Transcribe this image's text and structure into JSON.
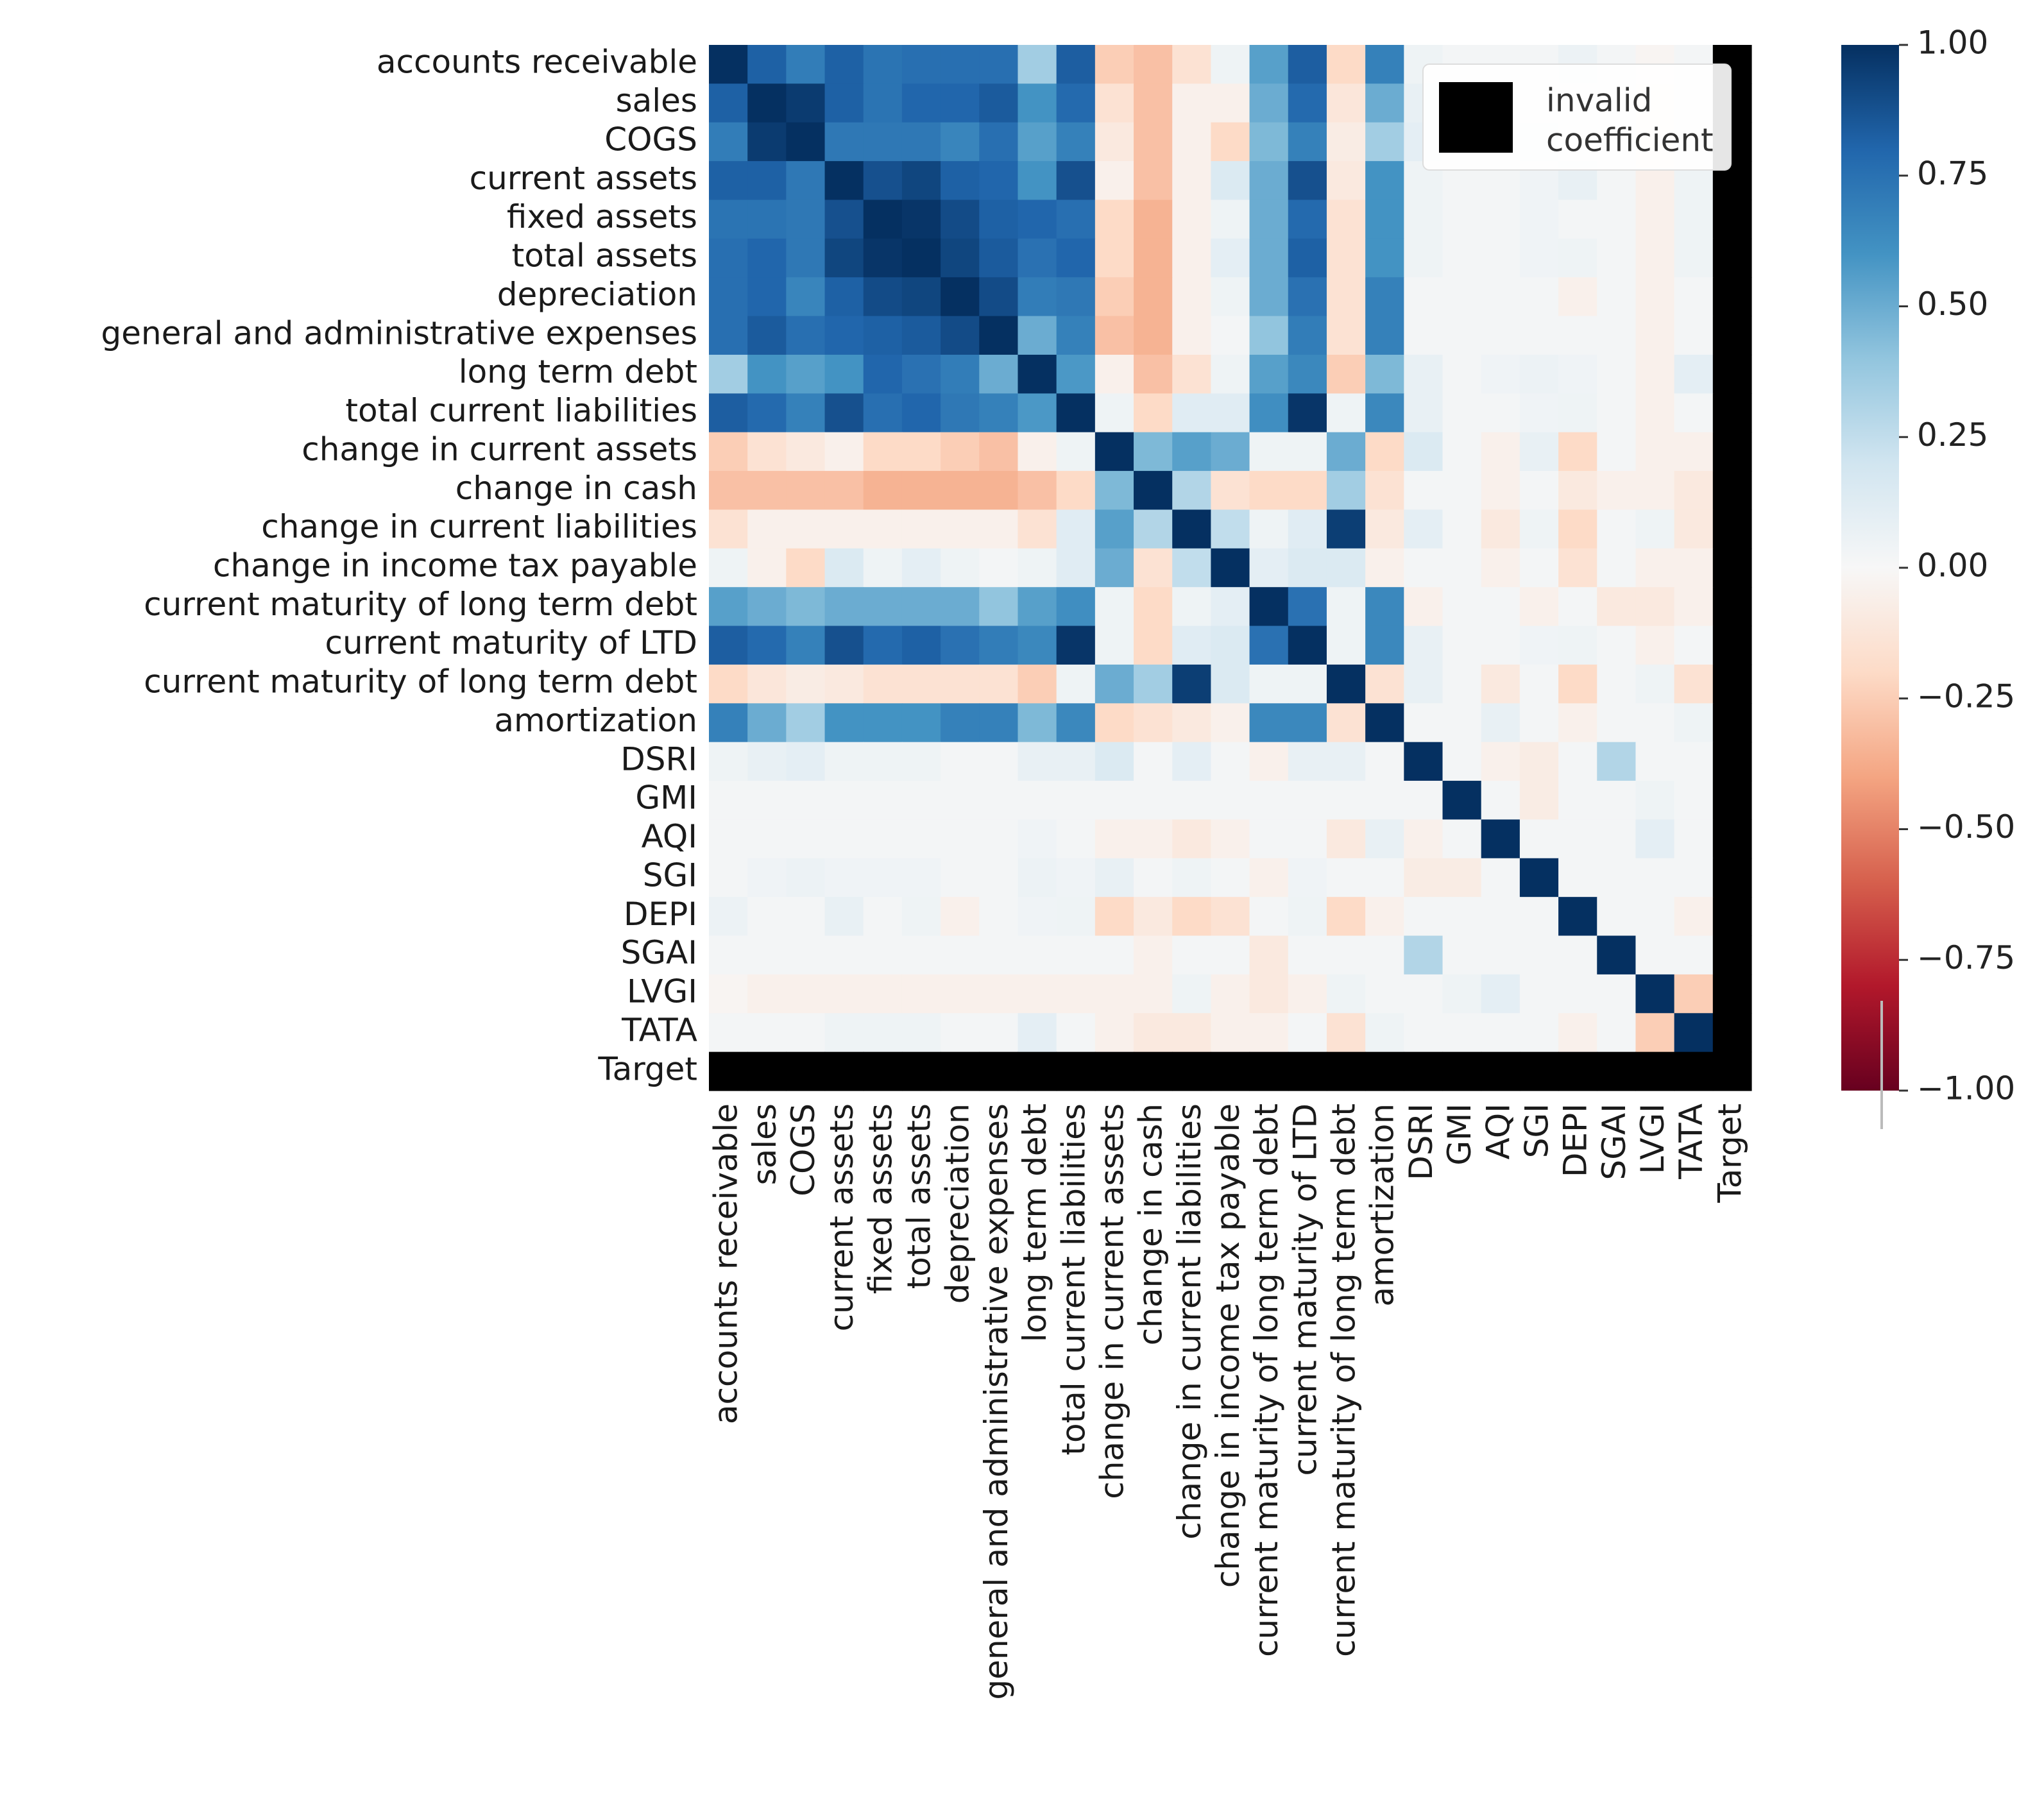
{
  "chart_data": {
    "type": "heatmap",
    "title": "",
    "labels": [
      "accounts receivable",
      "sales",
      "COGS",
      "current assets",
      "fixed assets",
      "total assets",
      "depreciation",
      "general and administrative expenses",
      "long term debt",
      "total current liabilities",
      "change in current assets",
      "change in cash",
      "change in current liabilities",
      "change in income tax payable",
      "current maturity of long term debt",
      "current maturity of LTD",
      "current maturity of long term debt",
      "amortization",
      "DSRI",
      "GMI",
      "AQI",
      "SGI",
      "DEPI",
      "SGAI",
      "LVGI",
      "TATA",
      "Target"
    ],
    "matrix": [
      [
        1,
        0.82,
        0.7,
        0.82,
        0.74,
        0.76,
        0.76,
        0.76,
        0.35,
        0.83,
        -0.25,
        -0.3,
        -0.15,
        0.05,
        0.55,
        0.83,
        -0.2,
        0.68,
        0.05,
        0.02,
        0.02,
        0.02,
        0.06,
        0.02,
        -0.02,
        0.02,
        null
      ],
      [
        0.82,
        1,
        0.96,
        0.82,
        0.74,
        0.8,
        0.8,
        0.84,
        0.6,
        0.78,
        -0.15,
        -0.3,
        -0.05,
        -0.05,
        0.5,
        0.78,
        -0.12,
        0.5,
        0.08,
        0.02,
        0.02,
        0.04,
        0.02,
        0.02,
        -0.05,
        0.02,
        null
      ],
      [
        0.7,
        0.96,
        1,
        0.72,
        0.72,
        0.72,
        0.66,
        0.76,
        0.55,
        0.68,
        -0.1,
        -0.3,
        -0.05,
        -0.2,
        0.45,
        0.68,
        -0.08,
        0.35,
        0.1,
        0.02,
        0.02,
        0.06,
        0.02,
        0.02,
        -0.05,
        0.02,
        null
      ],
      [
        0.82,
        0.82,
        0.72,
        1,
        0.88,
        0.92,
        0.82,
        0.8,
        0.6,
        0.88,
        -0.05,
        -0.3,
        -0.05,
        0.15,
        0.5,
        0.88,
        -0.1,
        0.6,
        0.05,
        0.02,
        0.02,
        0.04,
        0.08,
        0.02,
        -0.05,
        0.05,
        null
      ],
      [
        0.74,
        0.74,
        0.72,
        0.88,
        1,
        0.98,
        0.9,
        0.82,
        0.8,
        0.76,
        -0.2,
        -0.35,
        -0.05,
        0.05,
        0.5,
        0.78,
        -0.15,
        0.6,
        0.05,
        0.02,
        0.02,
        0.04,
        0.02,
        0.02,
        -0.05,
        0.05,
        null
      ],
      [
        0.76,
        0.8,
        0.72,
        0.92,
        0.98,
        1,
        0.92,
        0.84,
        0.75,
        0.8,
        -0.2,
        -0.35,
        -0.05,
        0.1,
        0.5,
        0.82,
        -0.15,
        0.6,
        0.05,
        0.02,
        0.02,
        0.04,
        0.05,
        0.02,
        -0.05,
        0.05,
        null
      ],
      [
        0.76,
        0.8,
        0.66,
        0.82,
        0.9,
        0.92,
        1,
        0.9,
        0.7,
        0.72,
        -0.25,
        -0.35,
        -0.05,
        0.05,
        0.5,
        0.75,
        -0.15,
        0.68,
        0.02,
        0.02,
        0.02,
        0.02,
        -0.05,
        0.02,
        -0.05,
        0.02,
        null
      ],
      [
        0.76,
        0.84,
        0.76,
        0.8,
        0.82,
        0.84,
        0.9,
        1,
        0.5,
        0.68,
        -0.3,
        -0.35,
        -0.05,
        0.02,
        0.4,
        0.7,
        -0.15,
        0.68,
        0.02,
        0.02,
        0.02,
        0.02,
        0.02,
        0.02,
        -0.05,
        0.02,
        null
      ],
      [
        0.35,
        0.6,
        0.55,
        0.6,
        0.8,
        0.75,
        0.7,
        0.5,
        1,
        0.58,
        -0.05,
        -0.3,
        -0.15,
        0.05,
        0.55,
        0.65,
        -0.25,
        0.45,
        0.08,
        0.02,
        0.04,
        0.06,
        0.04,
        0.02,
        -0.05,
        0.1,
        null
      ],
      [
        0.83,
        0.78,
        0.68,
        0.88,
        0.76,
        0.8,
        0.72,
        0.68,
        0.58,
        1,
        0.05,
        -0.2,
        0.12,
        0.12,
        0.62,
        0.98,
        0.05,
        0.65,
        0.08,
        0.02,
        0.02,
        0.04,
        0.05,
        0.02,
        -0.05,
        0.02,
        null
      ],
      [
        -0.25,
        -0.15,
        -0.1,
        -0.05,
        -0.2,
        -0.2,
        -0.25,
        -0.3,
        -0.05,
        0.05,
        1,
        0.45,
        0.55,
        0.5,
        0.05,
        0.05,
        0.5,
        -0.2,
        0.15,
        0.02,
        -0.05,
        0.08,
        -0.2,
        0.02,
        -0.05,
        -0.05,
        null
      ],
      [
        -0.3,
        -0.3,
        -0.3,
        -0.3,
        -0.35,
        -0.35,
        -0.35,
        -0.35,
        -0.3,
        -0.2,
        0.45,
        1,
        0.3,
        -0.15,
        -0.2,
        -0.2,
        0.35,
        -0.15,
        0.02,
        0.02,
        -0.05,
        0.02,
        -0.1,
        -0.05,
        -0.05,
        -0.1,
        null
      ],
      [
        -0.15,
        -0.05,
        -0.05,
        -0.05,
        -0.05,
        -0.05,
        -0.05,
        -0.05,
        -0.15,
        0.12,
        0.55,
        0.3,
        1,
        0.25,
        0.05,
        0.12,
        0.95,
        -0.1,
        0.1,
        0.02,
        -0.1,
        0.05,
        -0.2,
        0.02,
        0.05,
        -0.1,
        null
      ],
      [
        0.05,
        -0.05,
        -0.2,
        0.15,
        0.05,
        0.1,
        0.05,
        0.02,
        0.05,
        0.12,
        0.5,
        -0.15,
        0.25,
        1,
        0.1,
        0.15,
        0.15,
        -0.05,
        0.02,
        0.02,
        -0.05,
        0.02,
        -0.15,
        0.02,
        -0.05,
        -0.05,
        null
      ],
      [
        0.55,
        0.5,
        0.45,
        0.5,
        0.5,
        0.5,
        0.5,
        0.4,
        0.55,
        0.62,
        0.05,
        -0.2,
        0.05,
        0.1,
        1,
        0.75,
        0.05,
        0.65,
        -0.05,
        0.02,
        0.02,
        -0.05,
        0.02,
        -0.1,
        -0.1,
        -0.05,
        null
      ],
      [
        0.83,
        0.78,
        0.68,
        0.88,
        0.78,
        0.82,
        0.75,
        0.7,
        0.65,
        0.98,
        0.05,
        -0.2,
        0.12,
        0.15,
        0.75,
        1,
        0.05,
        0.65,
        0.08,
        0.02,
        0.02,
        0.04,
        0.05,
        0.02,
        -0.05,
        0.02,
        null
      ],
      [
        -0.2,
        -0.12,
        -0.08,
        -0.1,
        -0.15,
        -0.15,
        -0.15,
        -0.15,
        -0.25,
        0.05,
        0.5,
        0.35,
        0.95,
        0.15,
        0.05,
        0.05,
        1,
        -0.15,
        0.08,
        0.02,
        -0.1,
        0.02,
        -0.2,
        0.02,
        0.05,
        -0.15,
        null
      ],
      [
        0.68,
        0.5,
        0.35,
        0.6,
        0.6,
        0.6,
        0.68,
        0.68,
        0.45,
        0.65,
        -0.2,
        -0.15,
        -0.1,
        -0.05,
        0.65,
        0.65,
        -0.15,
        1,
        0.02,
        0.02,
        0.08,
        0.02,
        -0.05,
        0.02,
        0.02,
        0.05,
        null
      ],
      [
        0.05,
        0.08,
        0.1,
        0.05,
        0.05,
        0.05,
        0.02,
        0.02,
        0.08,
        0.08,
        0.15,
        0.02,
        0.1,
        0.02,
        -0.05,
        0.08,
        0.08,
        0.02,
        1,
        0.02,
        -0.05,
        -0.08,
        0.02,
        0.3,
        0.02,
        0.02,
        null
      ],
      [
        0.02,
        0.02,
        0.02,
        0.02,
        0.02,
        0.02,
        0.02,
        0.02,
        0.02,
        0.02,
        0.02,
        0.02,
        0.02,
        0.02,
        0.02,
        0.02,
        0.02,
        0.02,
        0.02,
        1,
        0.02,
        -0.08,
        0.02,
        0.02,
        0.05,
        0.02,
        null
      ],
      [
        0.02,
        0.02,
        0.02,
        0.02,
        0.02,
        0.02,
        0.02,
        0.02,
        0.04,
        0.02,
        -0.05,
        -0.05,
        -0.1,
        -0.05,
        0.02,
        0.02,
        -0.1,
        0.08,
        -0.05,
        0.02,
        1,
        0.02,
        0.02,
        0.02,
        0.1,
        0.02,
        null
      ],
      [
        0.02,
        0.04,
        0.06,
        0.04,
        0.04,
        0.04,
        0.02,
        0.02,
        0.06,
        0.04,
        0.08,
        0.02,
        0.05,
        0.02,
        -0.05,
        0.04,
        0.02,
        0.02,
        -0.08,
        -0.08,
        0.02,
        1,
        0.02,
        0.02,
        0.02,
        0.02,
        null
      ],
      [
        0.06,
        0.02,
        0.02,
        0.08,
        0.02,
        0.05,
        -0.05,
        0.02,
        0.04,
        0.05,
        -0.2,
        -0.1,
        -0.2,
        -0.15,
        0.02,
        0.05,
        -0.2,
        -0.05,
        0.02,
        0.02,
        0.02,
        0.02,
        1,
        0.02,
        0.02,
        -0.05,
        null
      ],
      [
        0.02,
        0.02,
        0.02,
        0.02,
        0.02,
        0.02,
        0.02,
        0.02,
        0.02,
        0.02,
        0.02,
        -0.05,
        0.02,
        0.02,
        -0.1,
        0.02,
        0.02,
        0.02,
        0.3,
        0.02,
        0.02,
        0.02,
        0.02,
        1,
        0.02,
        0.02,
        null
      ],
      [
        -0.02,
        -0.05,
        -0.05,
        -0.05,
        -0.05,
        -0.05,
        -0.05,
        -0.05,
        -0.05,
        -0.05,
        -0.05,
        -0.05,
        0.05,
        -0.05,
        -0.1,
        -0.05,
        0.05,
        0.02,
        0.02,
        0.05,
        0.1,
        0.02,
        0.02,
        0.02,
        1,
        -0.25,
        null
      ],
      [
        0.02,
        0.02,
        0.02,
        0.05,
        0.05,
        0.05,
        0.02,
        0.02,
        0.1,
        0.02,
        -0.05,
        -0.1,
        -0.1,
        -0.05,
        -0.05,
        0.02,
        -0.15,
        0.05,
        0.02,
        0.02,
        0.02,
        0.02,
        -0.05,
        0.02,
        -0.25,
        1,
        null
      ],
      [
        null,
        null,
        null,
        null,
        null,
        null,
        null,
        null,
        null,
        null,
        null,
        null,
        null,
        null,
        null,
        null,
        null,
        null,
        null,
        null,
        null,
        null,
        null,
        null,
        null,
        null,
        null
      ]
    ],
    "colorbar": {
      "min": -1.0,
      "max": 1.0,
      "ticks": [
        1.0,
        0.75,
        0.5,
        0.25,
        0.0,
        -0.25,
        -0.5,
        -0.75,
        -1.0
      ],
      "tick_labels": [
        "1.00",
        "0.75",
        "0.50",
        "0.25",
        "0.00",
        "−0.25",
        "−0.50",
        "−0.75",
        "−1.00"
      ],
      "colormap": "RdBu",
      "stops": [
        "#67001f",
        "#b2182b",
        "#d6604d",
        "#f4a582",
        "#fddbc7",
        "#f7f7f7",
        "#d1e5f0",
        "#92c5de",
        "#4393c3",
        "#2166ac",
        "#053061"
      ]
    },
    "legend": {
      "entries": [
        {
          "label_lines": [
            "invalid",
            "coefficient"
          ],
          "color": "#000000"
        }
      ],
      "placement": "top-right"
    },
    "invalid_color": "#000000"
  }
}
